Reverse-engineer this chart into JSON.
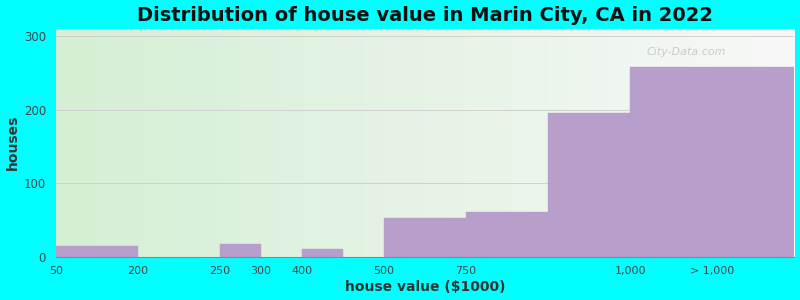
{
  "title": "Distribution of house value in Marin City, CA in 2022",
  "xlabel": "house value ($1000)",
  "ylabel": "houses",
  "background_color": "#00FFFF",
  "bar_color": "#b89eca",
  "watermark_text": "City-Data.com",
  "title_fontsize": 14,
  "axis_label_fontsize": 10,
  "ylim": [
    0,
    310
  ],
  "yticks": [
    0,
    100,
    200,
    300
  ],
  "grid_color": "#d0d0d0",
  "bar_left_edges": [
    0,
    1,
    2,
    3,
    4,
    5,
    6,
    7
  ],
  "bar_widths": [
    1,
    1,
    0.5,
    0.5,
    1,
    2,
    2,
    2
  ],
  "bar_values": [
    15,
    0,
    17,
    10,
    52,
    60,
    195,
    258
  ],
  "xtick_positions": [
    0,
    1,
    2,
    2.5,
    3,
    4,
    5,
    6,
    7,
    9
  ],
  "xtick_labels": [
    "50",
    "200",
    "250",
    "300",
    "400",
    "500",
    "750",
    "1,000",
    "",
    "> 1,000"
  ],
  "xlim": [
    0,
    9
  ]
}
